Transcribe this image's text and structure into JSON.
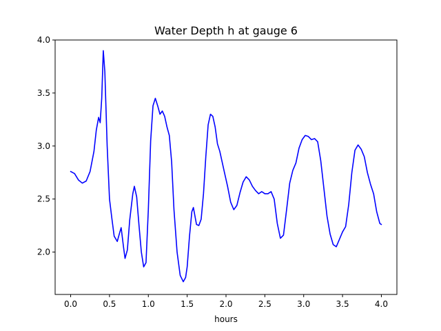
{
  "chart_data": {
    "type": "line",
    "title": "Water Depth h at gauge 6",
    "xlabel": "hours",
    "ylabel": "",
    "xlim": [
      -0.2,
      4.2
    ],
    "ylim": [
      1.6,
      4.0
    ],
    "xticks": [
      "0.0",
      "0.5",
      "1.0",
      "1.5",
      "2.0",
      "2.5",
      "3.0",
      "3.5",
      "4.0"
    ],
    "yticks": [
      "2.0",
      "2.5",
      "3.0",
      "3.5",
      "4.0"
    ],
    "grid": false,
    "legend": "none",
    "series": [
      {
        "color": "#0000ff",
        "x": [
          0.0,
          0.05,
          0.1,
          0.15,
          0.2,
          0.25,
          0.3,
          0.33,
          0.36,
          0.38,
          0.4,
          0.42,
          0.44,
          0.47,
          0.5,
          0.53,
          0.56,
          0.6,
          0.63,
          0.65,
          0.68,
          0.7,
          0.73,
          0.76,
          0.8,
          0.82,
          0.85,
          0.88,
          0.91,
          0.94,
          0.97,
          1.0,
          1.03,
          1.06,
          1.09,
          1.12,
          1.15,
          1.18,
          1.21,
          1.24,
          1.27,
          1.3,
          1.33,
          1.37,
          1.41,
          1.45,
          1.48,
          1.5,
          1.53,
          1.56,
          1.58,
          1.6,
          1.62,
          1.65,
          1.68,
          1.71,
          1.74,
          1.77,
          1.8,
          1.83,
          1.86,
          1.89,
          1.92,
          1.95,
          1.98,
          2.02,
          2.06,
          2.1,
          2.14,
          2.18,
          2.22,
          2.26,
          2.3,
          2.34,
          2.38,
          2.42,
          2.46,
          2.5,
          2.54,
          2.58,
          2.62,
          2.66,
          2.7,
          2.74,
          2.78,
          2.82,
          2.86,
          2.9,
          2.94,
          2.98,
          3.02,
          3.06,
          3.1,
          3.14,
          3.18,
          3.22,
          3.26,
          3.3,
          3.34,
          3.38,
          3.42,
          3.46,
          3.5,
          3.54,
          3.58,
          3.62,
          3.66,
          3.7,
          3.74,
          3.78,
          3.82,
          3.86,
          3.9,
          3.94,
          3.98,
          4.0
        ],
        "y": [
          2.76,
          2.74,
          2.68,
          2.65,
          2.67,
          2.76,
          2.95,
          3.15,
          3.27,
          3.22,
          3.45,
          3.9,
          3.7,
          3.0,
          2.5,
          2.32,
          2.15,
          2.1,
          2.18,
          2.23,
          2.05,
          1.94,
          2.02,
          2.3,
          2.55,
          2.62,
          2.52,
          2.25,
          2.0,
          1.86,
          1.9,
          2.4,
          3.05,
          3.38,
          3.45,
          3.38,
          3.3,
          3.33,
          3.28,
          3.18,
          3.1,
          2.85,
          2.4,
          2.0,
          1.78,
          1.72,
          1.76,
          1.86,
          2.15,
          2.38,
          2.42,
          2.34,
          2.26,
          2.25,
          2.31,
          2.55,
          2.9,
          3.2,
          3.3,
          3.28,
          3.18,
          3.02,
          2.95,
          2.85,
          2.75,
          2.62,
          2.47,
          2.4,
          2.44,
          2.56,
          2.66,
          2.71,
          2.68,
          2.62,
          2.58,
          2.55,
          2.57,
          2.55,
          2.55,
          2.57,
          2.5,
          2.27,
          2.13,
          2.16,
          2.4,
          2.65,
          2.77,
          2.84,
          2.98,
          3.06,
          3.1,
          3.09,
          3.06,
          3.07,
          3.04,
          2.86,
          2.6,
          2.34,
          2.17,
          2.07,
          2.05,
          2.12,
          2.19,
          2.24,
          2.45,
          2.75,
          2.96,
          3.01,
          2.97,
          2.9,
          2.75,
          2.64,
          2.55,
          2.38,
          2.27,
          2.26
        ]
      }
    ]
  }
}
